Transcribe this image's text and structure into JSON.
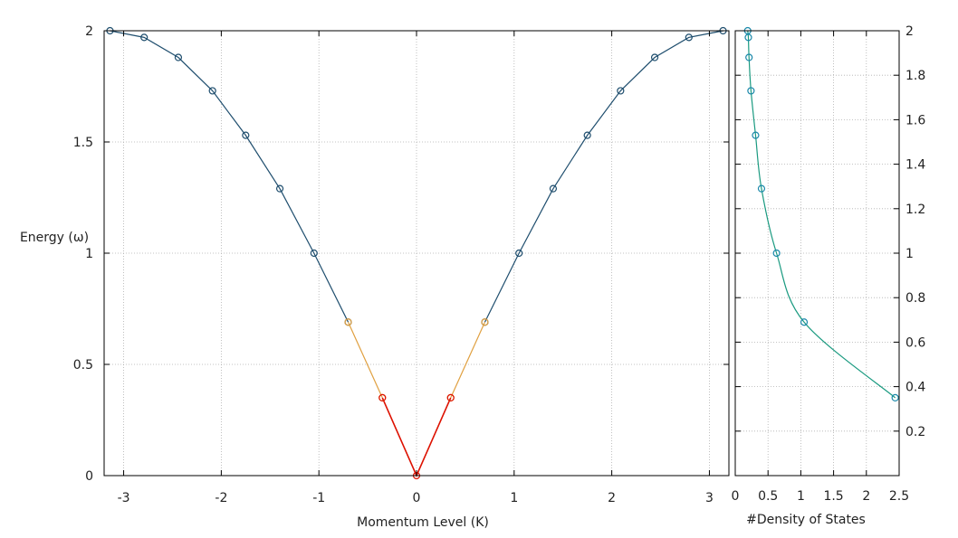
{
  "chart_data": [
    {
      "type": "line",
      "xlabel": "Momentum Level (K)",
      "ylabel": "Energy (ω)",
      "xlim": [
        -3.2,
        3.2
      ],
      "ylim": [
        0,
        2
      ],
      "xticks": [
        -3,
        -2,
        -1,
        0,
        1,
        2,
        3
      ],
      "yticks": [
        0,
        0.5,
        1,
        1.5,
        2
      ],
      "grid": true,
      "series": [
        {
          "color": "#1f4e6e",
          "segments": [
            {
              "x": [
                -3.14,
                -2.79,
                -2.44,
                -2.09,
                -1.75,
                -1.4,
                -1.05,
                -0.7
              ],
              "y": [
                2.0,
                1.97,
                1.88,
                1.73,
                1.53,
                1.29,
                1.0,
                0.69
              ]
            },
            {
              "x": [
                0.7,
                1.05,
                1.4,
                1.75,
                2.09,
                2.44,
                2.79,
                3.14
              ],
              "y": [
                0.69,
                1.0,
                1.29,
                1.53,
                1.73,
                1.88,
                1.97,
                2.0
              ]
            }
          ]
        },
        {
          "color": "#e0a040",
          "segments": [
            {
              "x": [
                -0.7,
                -0.35
              ],
              "y": [
                0.69,
                0.35
              ]
            },
            {
              "x": [
                0.35,
                0.7
              ],
              "y": [
                0.35,
                0.69
              ]
            }
          ]
        },
        {
          "color": "#dd1100",
          "segments": [
            {
              "x": [
                -0.35,
                0.0,
                0.35
              ],
              "y": [
                0.35,
                0.0,
                0.35
              ]
            }
          ]
        }
      ]
    },
    {
      "type": "line",
      "xlabel": "#Density of States",
      "ylabel": "",
      "xlim": [
        0,
        2.5
      ],
      "ylim": [
        0,
        2
      ],
      "xticks": [
        0,
        0.5,
        1,
        1.5,
        2,
        2.5
      ],
      "yticks": [
        0.2,
        0.4,
        0.6,
        0.8,
        1,
        1.2,
        1.4,
        1.6,
        1.8,
        2
      ],
      "grid": true,
      "series": [
        {
          "color": "#1a9a80",
          "marker_color": "#1a88aa",
          "points": {
            "x": [
              0.19,
              0.2,
              0.21,
              0.24,
              0.31,
              0.4,
              0.63,
              1.05,
              2.44
            ],
            "y": [
              2.0,
              1.97,
              1.88,
              1.73,
              1.53,
              1.29,
              1.0,
              0.69,
              0.35
            ]
          }
        }
      ]
    }
  ]
}
